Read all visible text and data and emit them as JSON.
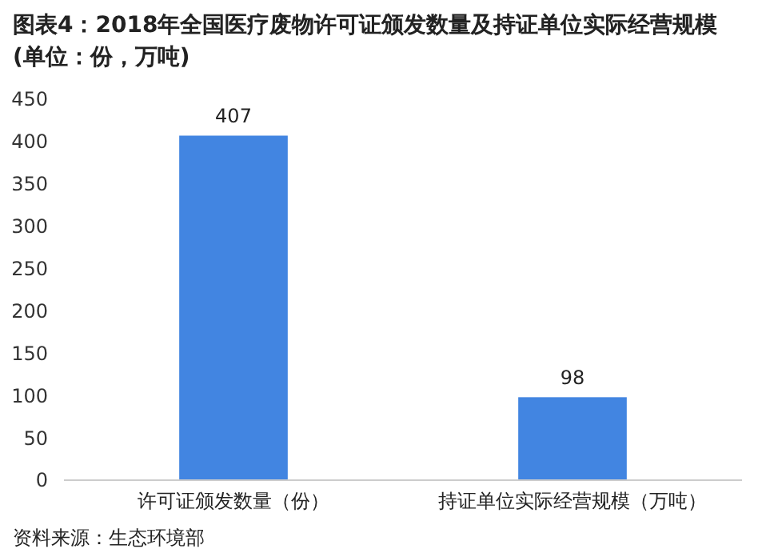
{
  "chart_data": {
    "type": "bar",
    "title": "图表4：2018年全国医疗废物许可证颁发数量及持证单位实际经营规模(单位：份，万吨)",
    "categories": [
      "许可证颁发数量（份）",
      "持证单位实际经营规模（万吨）"
    ],
    "values": [
      407,
      98
    ],
    "color": "#4285e1",
    "ylim": [
      0,
      450
    ],
    "yticks": [
      0,
      50,
      100,
      150,
      200,
      250,
      300,
      350,
      400,
      450
    ],
    "grid": false,
    "data_labels": true,
    "annotations": [
      "资料来源：生态环境部"
    ]
  }
}
